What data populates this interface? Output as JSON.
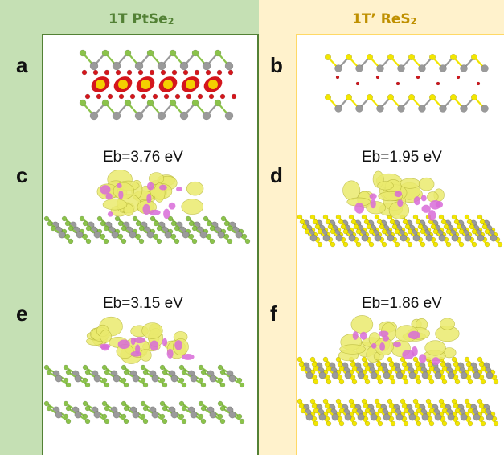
{
  "columns": [
    {
      "title_main": "1T PtSe",
      "title_sub": "2",
      "color": "#538135",
      "bg": "#c5e0b4"
    },
    {
      "title_main": "1T’ ReS",
      "title_sub": "2",
      "color": "#bf9000",
      "bg": "#fff2cc"
    }
  ],
  "panels": {
    "a": {
      "label": "a"
    },
    "b": {
      "label": "b"
    },
    "c": {
      "label": "c",
      "eb": "Eb=3.76 eV"
    },
    "d": {
      "label": "d",
      "eb": "Eb=1.95 eV"
    },
    "e": {
      "label": "e",
      "eb": "Eb=3.15 eV"
    },
    "f": {
      "label": "f",
      "eb": "Eb=1.86 eV"
    }
  },
  "colors": {
    "se_atom": "#8bc34a",
    "s_atom": "#f2e600",
    "metal_atom": "#9a9a9a",
    "o_atom": "#d4161c",
    "positive_density": "#eaea6e",
    "negative_density": "#d86bd8"
  }
}
